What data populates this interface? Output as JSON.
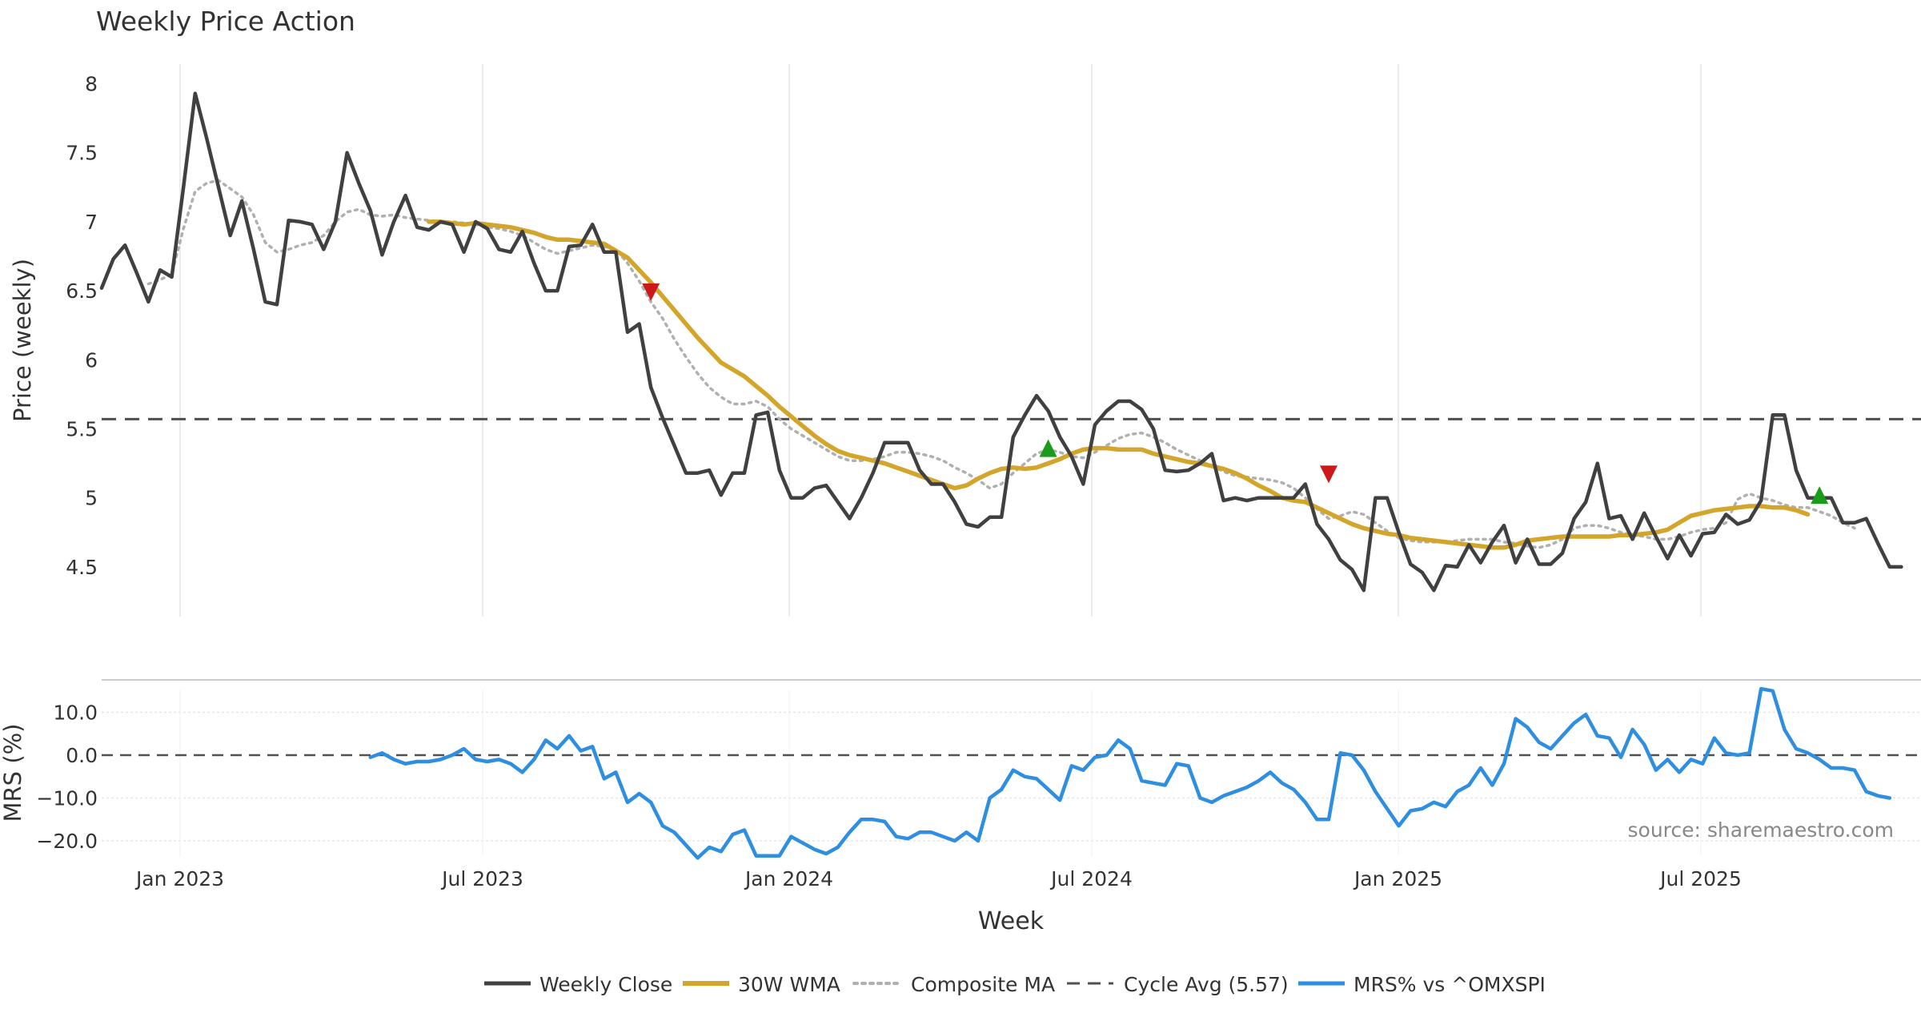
{
  "chart_data": [
    {
      "type": "line",
      "title": "Weekly Price Action",
      "ylabel": "Price (weekly)",
      "ylim": [
        4.15,
        8.15
      ],
      "yticks": [
        "8",
        "7.5",
        "7",
        "6.5",
        "6",
        "5.5",
        "5",
        "4.5"
      ],
      "xticks": [
        "Jan 2023",
        "Jul 2023",
        "Jan 2024",
        "Jul 2024",
        "Jan 2025",
        "Jul 2025"
      ],
      "cycle_avg": 5.57,
      "series": [
        {
          "name": "Weekly Close",
          "color": "#404040",
          "values": [
            6.52,
            6.73,
            6.83,
            6.63,
            6.42,
            6.65,
            6.6,
            7.25,
            7.93,
            7.6,
            7.25,
            6.9,
            7.15,
            6.8,
            6.42,
            6.4,
            7.01,
            7.0,
            6.98,
            6.8,
            7.0,
            7.5,
            7.28,
            7.08,
            6.76,
            7.0,
            7.19,
            6.96,
            6.94,
            7.0,
            6.98,
            6.78,
            7.0,
            6.95,
            6.8,
            6.78,
            6.93,
            6.7,
            6.5,
            6.5,
            6.82,
            6.83,
            6.98,
            6.78,
            6.78,
            6.2,
            6.26,
            5.8,
            5.58,
            5.38,
            5.18,
            5.18,
            5.2,
            5.02,
            5.18,
            5.18,
            5.6,
            5.62,
            5.2,
            5.0,
            5.0,
            5.07,
            5.09,
            4.97,
            4.85,
            5.0,
            5.18,
            5.4,
            5.4,
            5.4,
            5.2,
            5.1,
            5.1,
            4.97,
            4.81,
            4.79,
            4.86,
            4.86,
            5.44,
            5.6,
            5.74,
            5.63,
            5.44,
            5.3,
            5.1,
            5.53,
            5.63,
            5.7,
            5.7,
            5.64,
            5.5,
            5.2,
            5.19,
            5.2,
            5.25,
            5.32,
            4.98,
            5.0,
            4.98,
            5.0,
            5.0,
            5.0,
            5.0,
            5.1,
            4.81,
            4.7,
            4.55,
            4.48,
            4.33,
            5.0,
            5.0,
            4.75,
            4.52,
            4.46,
            4.33,
            4.51,
            4.5,
            4.66,
            4.53,
            4.68,
            4.8,
            4.53,
            4.7,
            4.52,
            4.52,
            4.6,
            4.85,
            4.97,
            5.25,
            4.85,
            4.87,
            4.7,
            4.89,
            4.72,
            4.56,
            4.73,
            4.58,
            4.74,
            4.75,
            4.88,
            4.81,
            4.84,
            4.98,
            5.6,
            5.6,
            5.2,
            5.0,
            5.0,
            5.0,
            4.82,
            4.82,
            4.85,
            4.67,
            4.5,
            4.5
          ]
        },
        {
          "name": "30W WMA",
          "color": "#d4a52b",
          "start_index": 28,
          "values": [
            7.0,
            7.0,
            6.99,
            6.98,
            6.99,
            6.98,
            6.97,
            6.96,
            6.94,
            6.92,
            6.89,
            6.87,
            6.87,
            6.86,
            6.85,
            6.84,
            6.79,
            6.74,
            6.65,
            6.56,
            6.46,
            6.36,
            6.26,
            6.16,
            6.07,
            5.98,
            5.93,
            5.88,
            5.81,
            5.74,
            5.66,
            5.59,
            5.52,
            5.45,
            5.39,
            5.34,
            5.31,
            5.29,
            5.27,
            5.25,
            5.22,
            5.19,
            5.16,
            5.13,
            5.1,
            5.07,
            5.09,
            5.14,
            5.18,
            5.21,
            5.22,
            5.21,
            5.22,
            5.25,
            5.28,
            5.32,
            5.35,
            5.36,
            5.36,
            5.35,
            5.35,
            5.35,
            5.32,
            5.3,
            5.28,
            5.26,
            5.25,
            5.23,
            5.21,
            5.18,
            5.14,
            5.09,
            5.05,
            5.0,
            4.98,
            4.97,
            4.93,
            4.89,
            4.85,
            4.81,
            4.78,
            4.76,
            4.74,
            4.73,
            4.71,
            4.7,
            4.69,
            4.68,
            4.67,
            4.66,
            4.65,
            4.64,
            4.64,
            4.66,
            4.69,
            4.7,
            4.71,
            4.72,
            4.72,
            4.72,
            4.72,
            4.72,
            4.73,
            4.73,
            4.74,
            4.75,
            4.77,
            4.82,
            4.87,
            4.89,
            4.91,
            4.92,
            4.93,
            4.94,
            4.94,
            4.93,
            4.93,
            4.91,
            4.88
          ]
        },
        {
          "name": "Composite MA",
          "color": "#b0b0b0",
          "start_index": 4,
          "values": [
            6.55,
            6.58,
            6.62,
            6.95,
            7.22,
            7.28,
            7.3,
            7.24,
            7.18,
            7.05,
            6.85,
            6.78,
            6.8,
            6.83,
            6.85,
            6.9,
            7.0,
            7.07,
            7.09,
            7.05,
            7.04,
            7.05,
            7.03,
            7.02,
            7.01,
            7.0,
            7.0,
            6.99,
            6.98,
            6.96,
            6.95,
            6.93,
            6.9,
            6.85,
            6.8,
            6.77,
            6.79,
            6.81,
            6.83,
            6.82,
            6.8,
            6.7,
            6.57,
            6.42,
            6.3,
            6.15,
            6.02,
            5.9,
            5.8,
            5.73,
            5.68,
            5.68,
            5.7,
            5.66,
            5.57,
            5.5,
            5.45,
            5.4,
            5.35,
            5.3,
            5.27,
            5.27,
            5.28,
            5.3,
            5.33,
            5.33,
            5.32,
            5.3,
            5.27,
            5.22,
            5.18,
            5.13,
            5.07,
            5.1,
            5.18,
            5.25,
            5.32,
            5.35,
            5.33,
            5.3,
            5.29,
            5.33,
            5.38,
            5.43,
            5.46,
            5.47,
            5.44,
            5.4,
            5.35,
            5.31,
            5.27,
            5.23,
            5.19,
            5.16,
            5.15,
            5.14,
            5.13,
            5.11,
            5.07,
            5.0,
            4.92,
            4.85,
            4.87,
            4.9,
            4.88,
            4.82,
            4.76,
            4.71,
            4.69,
            4.68,
            4.68,
            4.68,
            4.69,
            4.7,
            4.7,
            4.7,
            4.68,
            4.67,
            4.65,
            4.64,
            4.66,
            4.7,
            4.78,
            4.8,
            4.8,
            4.78,
            4.75,
            4.73,
            4.72,
            4.7,
            4.7,
            4.72,
            4.75,
            4.77,
            4.78,
            4.82,
            4.99,
            5.03,
            5.0,
            4.98,
            4.95,
            4.93,
            4.93,
            4.9,
            4.87,
            4.82,
            4.78
          ]
        },
        {
          "name": "Cycle Avg (5.57)",
          "color": "#505050",
          "value": 5.57
        }
      ],
      "markers": [
        {
          "type": "sell",
          "symbol": "triangle-down",
          "color": "#cc1a1a",
          "index": 47,
          "value": 6.49
        },
        {
          "type": "buy",
          "symbol": "triangle-up",
          "color": "#1a9c1a",
          "index": 81,
          "value": 5.36
        },
        {
          "type": "sell",
          "symbol": "triangle-down",
          "color": "#cc1a1a",
          "index": 105,
          "value": 5.17
        },
        {
          "type": "buy",
          "symbol": "triangle-up",
          "color": "#1a9c1a",
          "index": 147,
          "value": 5.02
        }
      ]
    },
    {
      "type": "line",
      "ylabel": "MRS (%)",
      "xlabel": "Week",
      "ylim": [
        -24,
        18
      ],
      "yticks": [
        "10.0",
        "0.0",
        "−10.0",
        "−20.0"
      ],
      "reference_line": 0,
      "series": [
        {
          "name": "MRS% vs ^OMXSPI",
          "color": "#2e8ee0",
          "start_index": 23,
          "values": [
            -0.5,
            0.5,
            -1.0,
            -2.0,
            -1.5,
            -1.5,
            -1.0,
            0.0,
            1.5,
            -1.0,
            -1.5,
            -1.0,
            -2.0,
            -4.0,
            -1.0,
            3.5,
            1.5,
            4.5,
            1.0,
            2.0,
            -5.5,
            -4.0,
            -11.0,
            -9.0,
            -11.0,
            -16.5,
            -18.0,
            -21.0,
            -24.0,
            -21.5,
            -22.5,
            -18.5,
            -17.5,
            -23.5,
            -23.5,
            -23.5,
            -19.0,
            -20.5,
            -22.0,
            -23.0,
            -21.5,
            -18.0,
            -15.0,
            -15.0,
            -15.5,
            -19.0,
            -19.5,
            -18.0,
            -18.0,
            -19.0,
            -20.0,
            -18.0,
            -20.0,
            -10.0,
            -8.0,
            -3.5,
            -5.0,
            -5.5,
            -8.0,
            -10.5,
            -2.5,
            -3.5,
            -0.5,
            0.0,
            3.5,
            1.5,
            -6.0,
            -6.5,
            -7.0,
            -2.0,
            -2.5,
            -10.0,
            -11.0,
            -9.5,
            -8.5,
            -7.5,
            -6.0,
            -4.0,
            -6.5,
            -8.0,
            -11.0,
            -15.0,
            -15.0,
            0.5,
            0.0,
            -3.5,
            -8.5,
            -12.5,
            -16.5,
            -13.0,
            -12.5,
            -11.0,
            -12.0,
            -8.5,
            -7.0,
            -3.0,
            -7.0,
            -2.0,
            8.5,
            6.5,
            3.0,
            1.5,
            4.5,
            7.5,
            9.5,
            4.5,
            4.0,
            -0.5,
            6.0,
            2.5,
            -3.5,
            -1.0,
            -4.0,
            -1.0,
            -2.0,
            4.0,
            0.5,
            0.0,
            0.5,
            15.5,
            15.0,
            6.0,
            1.5,
            0.5,
            -1.0,
            -3.0,
            -3.0,
            -3.5,
            -8.5,
            -9.5,
            -10.0
          ]
        }
      ]
    }
  ],
  "annotation": "source: sharemaestro.com",
  "legend": [
    {
      "label": "Weekly Close",
      "color": "#404040",
      "style": "solid"
    },
    {
      "label": "30W WMA",
      "color": "#d4a52b",
      "style": "solid"
    },
    {
      "label": "Composite MA",
      "color": "#b0b0b0",
      "style": "dotted"
    },
    {
      "label": "Cycle Avg (5.57)",
      "color": "#505050",
      "style": "dashed"
    },
    {
      "label": "MRS% vs ^OMXSPI",
      "color": "#2e8ee0",
      "style": "solid"
    }
  ]
}
